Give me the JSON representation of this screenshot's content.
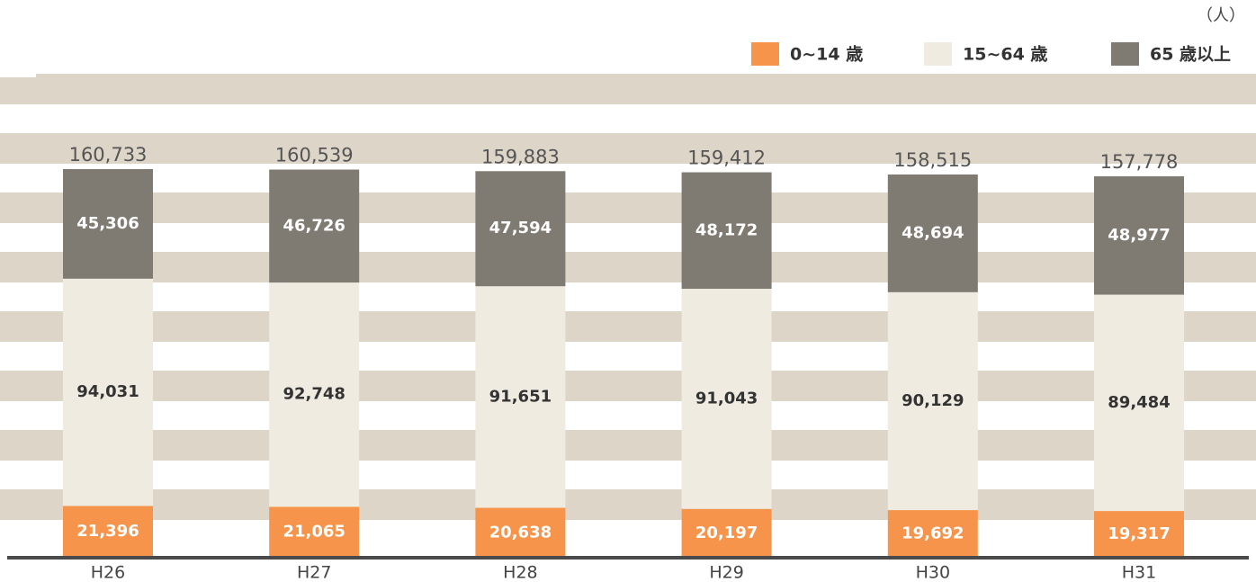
{
  "chart_data": {
    "type": "stacked_bar",
    "unit": "（人）",
    "categories": [
      "H26",
      "H27",
      "H28",
      "H29",
      "H30",
      "H31"
    ],
    "series": [
      {
        "name": "0~14 歳",
        "color": "#f7944b",
        "values": [
          21396,
          21065,
          20638,
          20197,
          19692,
          19317
        ],
        "value_labels": [
          "21,396",
          "21,065",
          "20,638",
          "20,197",
          "19,692",
          "19,317"
        ]
      },
      {
        "name": "15~64 歳",
        "color": "#efebe1",
        "values": [
          94031,
          92748,
          91651,
          91043,
          90129,
          89484
        ],
        "value_labels": [
          "94,031",
          "92,748",
          "91,651",
          "91,043",
          "90,129",
          "89,484"
        ]
      },
      {
        "name": "65 歳以上",
        "color": "#7f7a72",
        "values": [
          45306,
          46726,
          47594,
          48172,
          48694,
          48977
        ],
        "value_labels": [
          "45,306",
          "46,726",
          "47,594",
          "48,172",
          "48,694",
          "48,977"
        ]
      }
    ],
    "totals": [
      160733,
      160539,
      159883,
      159412,
      158515,
      157778
    ],
    "total_labels": [
      "160,733",
      "160,539",
      "159,883",
      "159,412",
      "158,515",
      "157,778"
    ]
  }
}
